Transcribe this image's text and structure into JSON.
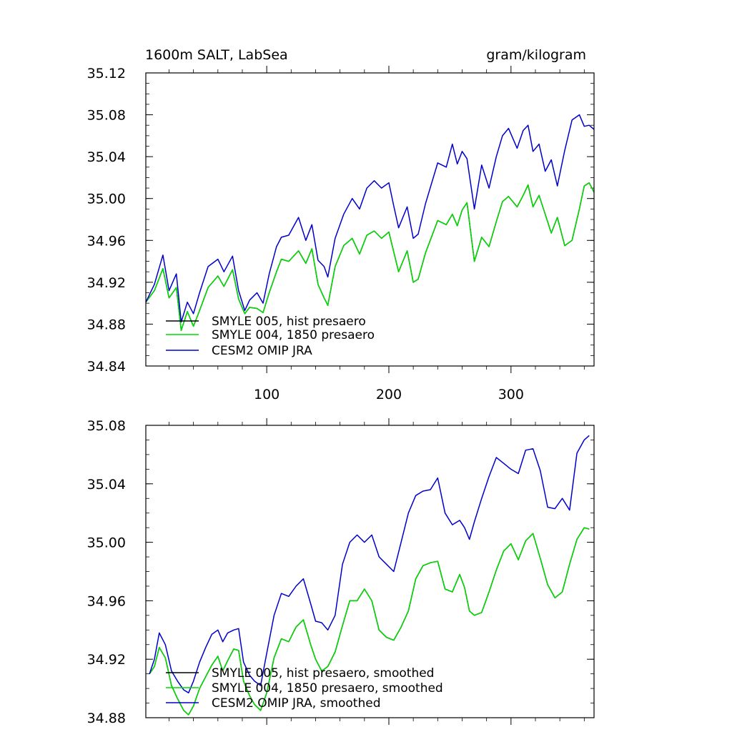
{
  "colors": {
    "black": "#000000",
    "green": "#00dd00",
    "blue": "#0000cc"
  },
  "chart_data": [
    {
      "type": "line",
      "title_left": "1600m SALT, LabSea",
      "title_right": "gram/kilogram",
      "xlim": [
        1,
        368
      ],
      "ylim": [
        34.84,
        35.12
      ],
      "xticks": [
        100,
        200,
        300
      ],
      "xtick_labels": [
        "100",
        "200",
        "300"
      ],
      "yticks": [
        34.84,
        34.88,
        34.92,
        34.96,
        35.0,
        35.04,
        35.08,
        35.12
      ],
      "ytick_labels": [
        "34.84",
        "34.88",
        "34.92",
        "34.96",
        "35.00",
        "35.04",
        "35.08",
        "35.12"
      ],
      "legend_position": "bottom-left",
      "series": [
        {
          "name": "SMYLE 005, hist presaero",
          "color": "#000000",
          "x": [
            1,
            8,
            15,
            20,
            26,
            30,
            35,
            40,
            45,
            52,
            60,
            65,
            72,
            77,
            82,
            86,
            92,
            97,
            102,
            108,
            112,
            118,
            126,
            132,
            137,
            142,
            147,
            150,
            156,
            163,
            170,
            176,
            182,
            188,
            194,
            200,
            204,
            208,
            215,
            220,
            224,
            230,
            240,
            247,
            252,
            256,
            260,
            264,
            270,
            276,
            282,
            288,
            293,
            298,
            305,
            310,
            314,
            318,
            323,
            328,
            333,
            338,
            344,
            350,
            356,
            360,
            364,
            368
          ],
          "values": [
            34.901,
            34.912,
            34.933,
            34.905,
            34.915,
            34.874,
            34.892,
            34.878,
            34.893,
            34.915,
            34.926,
            34.916,
            34.932,
            34.904,
            34.89,
            34.896,
            34.895,
            34.891,
            34.91,
            34.93,
            34.942,
            34.94,
            34.95,
            34.938,
            34.952,
            34.918,
            34.905,
            34.898,
            34.935,
            34.955,
            34.962,
            34.947,
            34.965,
            34.969,
            34.962,
            34.968,
            34.949,
            34.93,
            34.95,
            34.92,
            34.923,
            34.948,
            34.979,
            34.975,
            34.985,
            34.974,
            34.989,
            34.996,
            34.94,
            34.963,
            34.954,
            34.978,
            34.997,
            35.002,
            34.992,
            35.003,
            35.013,
            34.992,
            35.003,
            34.985,
            34.967,
            34.982,
            34.955,
            34.96,
            34.99,
            35.012,
            35.015,
            35.006
          ]
        },
        {
          "name": "SMYLE 004, 1850 presaero",
          "color": "#00dd00",
          "x": [
            1,
            8,
            15,
            20,
            26,
            30,
            35,
            40,
            45,
            52,
            60,
            65,
            72,
            77,
            82,
            86,
            92,
            97,
            102,
            108,
            112,
            118,
            126,
            132,
            137,
            142,
            147,
            150,
            156,
            163,
            170,
            176,
            182,
            188,
            194,
            200,
            204,
            208,
            215,
            220,
            224,
            230,
            240,
            247,
            252,
            256,
            260,
            264,
            270,
            276,
            282,
            288,
            293,
            298,
            305,
            310,
            314,
            318,
            323,
            328,
            333,
            338,
            344,
            350,
            356,
            360,
            364,
            368
          ],
          "values": [
            34.901,
            34.912,
            34.933,
            34.905,
            34.915,
            34.874,
            34.892,
            34.878,
            34.893,
            34.915,
            34.926,
            34.916,
            34.932,
            34.904,
            34.89,
            34.896,
            34.895,
            34.891,
            34.91,
            34.93,
            34.942,
            34.94,
            34.95,
            34.938,
            34.952,
            34.918,
            34.905,
            34.898,
            34.935,
            34.955,
            34.962,
            34.947,
            34.965,
            34.969,
            34.962,
            34.968,
            34.949,
            34.93,
            34.95,
            34.92,
            34.923,
            34.948,
            34.979,
            34.975,
            34.985,
            34.974,
            34.989,
            34.996,
            34.94,
            34.963,
            34.954,
            34.978,
            34.997,
            35.002,
            34.992,
            35.003,
            35.013,
            34.992,
            35.003,
            34.985,
            34.967,
            34.982,
            34.955,
            34.96,
            34.99,
            35.012,
            35.015,
            35.006
          ]
        },
        {
          "name": "CESM2 OMIP JRA",
          "color": "#0000cc",
          "x": [
            1,
            8,
            15,
            20,
            26,
            30,
            35,
            40,
            45,
            52,
            60,
            65,
            72,
            77,
            82,
            86,
            92,
            97,
            102,
            108,
            112,
            118,
            126,
            132,
            137,
            142,
            147,
            150,
            156,
            163,
            170,
            176,
            182,
            188,
            194,
            200,
            204,
            208,
            215,
            220,
            224,
            230,
            240,
            247,
            252,
            256,
            260,
            264,
            270,
            276,
            282,
            288,
            293,
            298,
            305,
            310,
            314,
            318,
            323,
            328,
            333,
            338,
            344,
            350,
            356,
            360,
            364,
            368
          ],
          "values": [
            34.901,
            34.918,
            34.946,
            34.912,
            34.928,
            34.882,
            34.901,
            34.89,
            34.91,
            34.935,
            34.942,
            34.93,
            34.945,
            34.912,
            34.893,
            34.903,
            34.91,
            34.9,
            34.928,
            34.954,
            34.963,
            34.965,
            34.982,
            34.96,
            34.975,
            34.941,
            34.935,
            34.925,
            34.962,
            34.985,
            35.0,
            34.99,
            35.01,
            35.017,
            35.01,
            35.015,
            34.993,
            34.972,
            34.992,
            34.962,
            34.966,
            34.995,
            35.034,
            35.03,
            35.052,
            35.033,
            35.045,
            35.038,
            34.99,
            35.032,
            35.01,
            35.04,
            35.06,
            35.067,
            35.048,
            35.065,
            35.07,
            35.045,
            35.052,
            35.026,
            35.037,
            35.012,
            35.046,
            35.075,
            35.08,
            35.069,
            35.07,
            35.066
          ]
        }
      ]
    },
    {
      "type": "line",
      "xlim": [
        1,
        368
      ],
      "ylim": [
        34.88,
        35.08
      ],
      "xticks": [
        100,
        200,
        300
      ],
      "yticks": [
        34.88,
        34.92,
        34.96,
        35.0,
        35.04,
        35.08
      ],
      "ytick_labels": [
        "34.88",
        "34.92",
        "34.96",
        "35.00",
        "35.04",
        "35.08"
      ],
      "legend_position": "bottom-left",
      "series": [
        {
          "name": "SMYLE 005, hist presaero, smoothed",
          "color": "#000000",
          "x": [
            4,
            8,
            12,
            17,
            22,
            27,
            32,
            36,
            40,
            45,
            50,
            55,
            60,
            64,
            68,
            73,
            77,
            81,
            86,
            90,
            95,
            100,
            106,
            112,
            118,
            124,
            130,
            136,
            140,
            145,
            150,
            156,
            162,
            168,
            174,
            180,
            186,
            192,
            198,
            204,
            210,
            216,
            222,
            228,
            234,
            240,
            246,
            252,
            258,
            262,
            266,
            270,
            276,
            282,
            288,
            294,
            300,
            306,
            312,
            318,
            324,
            330,
            336,
            342,
            348,
            354,
            360,
            364
          ],
          "values": [
            34.91,
            34.915,
            34.928,
            34.921,
            34.902,
            34.893,
            34.885,
            34.882,
            34.888,
            34.9,
            34.908,
            34.916,
            34.922,
            34.912,
            34.919,
            34.927,
            34.926,
            34.905,
            34.895,
            34.889,
            34.885,
            34.897,
            34.921,
            34.934,
            34.932,
            34.942,
            34.947,
            34.93,
            34.92,
            34.912,
            34.915,
            34.925,
            34.943,
            34.96,
            34.96,
            34.968,
            34.96,
            34.94,
            34.935,
            34.933,
            34.942,
            34.953,
            34.975,
            34.984,
            34.986,
            34.987,
            34.968,
            34.966,
            34.978,
            34.969,
            34.953,
            34.95,
            34.952,
            34.966,
            34.981,
            34.994,
            34.999,
            34.988,
            35.001,
            35.006,
            34.989,
            34.971,
            34.962,
            34.966,
            34.985,
            35.002,
            35.01,
            35.009
          ]
        },
        {
          "name": "SMYLE 004, 1850 presaero, smoothed",
          "color": "#00dd00",
          "x": [
            4,
            8,
            12,
            17,
            22,
            27,
            32,
            36,
            40,
            45,
            50,
            55,
            60,
            64,
            68,
            73,
            77,
            81,
            86,
            90,
            95,
            100,
            106,
            112,
            118,
            124,
            130,
            136,
            140,
            145,
            150,
            156,
            162,
            168,
            174,
            180,
            186,
            192,
            198,
            204,
            210,
            216,
            222,
            228,
            234,
            240,
            246,
            252,
            258,
            262,
            266,
            270,
            276,
            282,
            288,
            294,
            300,
            306,
            312,
            318,
            324,
            330,
            336,
            342,
            348,
            354,
            360,
            364
          ],
          "values": [
            34.91,
            34.915,
            34.928,
            34.921,
            34.902,
            34.893,
            34.885,
            34.882,
            34.888,
            34.9,
            34.908,
            34.916,
            34.922,
            34.912,
            34.919,
            34.927,
            34.926,
            34.905,
            34.895,
            34.889,
            34.885,
            34.897,
            34.921,
            34.934,
            34.932,
            34.942,
            34.947,
            34.93,
            34.92,
            34.912,
            34.915,
            34.925,
            34.943,
            34.96,
            34.96,
            34.968,
            34.96,
            34.94,
            34.935,
            34.933,
            34.942,
            34.953,
            34.975,
            34.984,
            34.986,
            34.987,
            34.968,
            34.966,
            34.978,
            34.969,
            34.953,
            34.95,
            34.952,
            34.966,
            34.981,
            34.994,
            34.999,
            34.988,
            35.001,
            35.006,
            34.989,
            34.971,
            34.962,
            34.966,
            34.985,
            35.002,
            35.01,
            35.009
          ]
        },
        {
          "name": "CESM2 OMIP JRA, smoothed",
          "color": "#0000cc",
          "x": [
            4,
            8,
            12,
            17,
            22,
            27,
            32,
            36,
            40,
            45,
            50,
            55,
            60,
            64,
            68,
            73,
            77,
            81,
            86,
            90,
            95,
            100,
            106,
            112,
            118,
            124,
            130,
            136,
            140,
            145,
            150,
            156,
            162,
            168,
            174,
            180,
            186,
            192,
            198,
            204,
            210,
            216,
            222,
            228,
            234,
            240,
            246,
            252,
            258,
            262,
            266,
            270,
            276,
            282,
            288,
            294,
            300,
            306,
            312,
            318,
            324,
            330,
            336,
            342,
            348,
            354,
            360,
            364
          ],
          "values": [
            34.91,
            34.92,
            34.938,
            34.93,
            34.912,
            34.905,
            34.899,
            34.897,
            34.905,
            34.918,
            34.928,
            34.937,
            34.94,
            34.932,
            34.938,
            34.94,
            34.941,
            34.918,
            34.909,
            34.905,
            34.902,
            34.924,
            34.95,
            34.965,
            34.963,
            34.97,
            34.975,
            34.958,
            34.946,
            34.945,
            34.94,
            34.95,
            34.985,
            35.0,
            35.005,
            35.0,
            35.005,
            34.99,
            34.985,
            34.98,
            35.0,
            35.02,
            35.032,
            35.035,
            35.036,
            35.044,
            35.02,
            35.012,
            35.015,
            35.01,
            35.002,
            35.014,
            35.03,
            35.045,
            35.058,
            35.054,
            35.05,
            35.047,
            35.063,
            35.064,
            35.049,
            35.024,
            35.023,
            35.03,
            35.022,
            35.061,
            35.07,
            35.073
          ]
        }
      ]
    }
  ]
}
